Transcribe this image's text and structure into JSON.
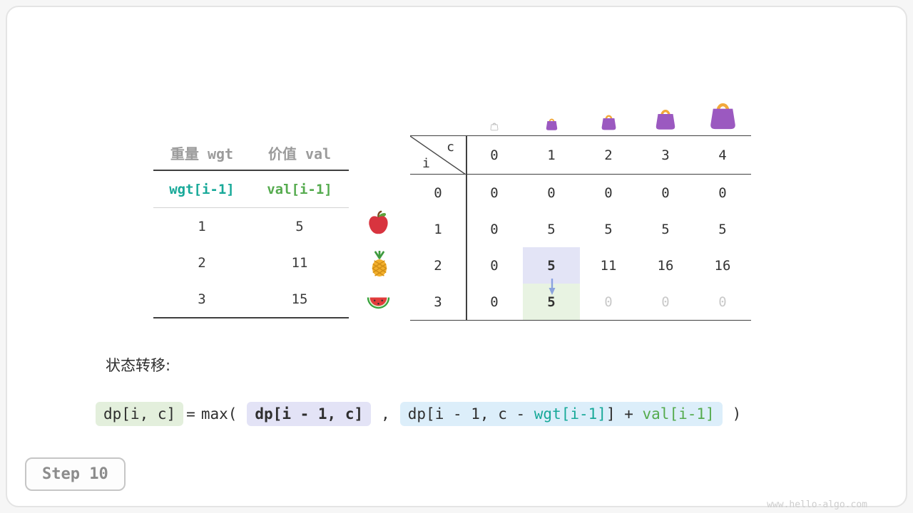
{
  "page": {
    "step_label": "Step 10",
    "watermark": "www.hello-algo.com",
    "formula_label": "状态转移:"
  },
  "items_table": {
    "headers": [
      "重量 wgt",
      "价值 val"
    ],
    "var_row": [
      "wgt[i-1]",
      "val[i-1]"
    ],
    "rows": [
      [
        "1",
        "5"
      ],
      [
        "2",
        "11"
      ],
      [
        "3",
        "15"
      ]
    ],
    "row_icons": [
      "apple-icon",
      "pineapple-icon",
      "watermelon-icon"
    ]
  },
  "dp_table": {
    "corner": {
      "row_label": "i",
      "col_label": "c"
    },
    "col_headers": [
      "0",
      "1",
      "2",
      "3",
      "4"
    ],
    "row_headers": [
      "0",
      "1",
      "2",
      "3"
    ],
    "rows": [
      [
        "0",
        "0",
        "0",
        "0",
        "0"
      ],
      [
        "0",
        "5",
        "5",
        "5",
        "5"
      ],
      [
        "0",
        "5",
        "11",
        "16",
        "16"
      ],
      [
        "0",
        "5",
        "0",
        "0",
        "0"
      ]
    ],
    "highlight_purple_cell": [
      2,
      1
    ],
    "highlight_green_cell": [
      3,
      1
    ],
    "bold_cells": [
      [
        2,
        1
      ],
      [
        3,
        1
      ]
    ],
    "dim_cells": [
      [
        3,
        2
      ],
      [
        3,
        3
      ],
      [
        3,
        4
      ]
    ],
    "bags": [
      {
        "icon": "bag-outline-icon",
        "size": 14
      },
      {
        "icon": "bag-icon",
        "size": 21
      },
      {
        "icon": "bag-icon",
        "size": 27
      },
      {
        "icon": "bag-icon",
        "size": 36
      },
      {
        "icon": "bag-icon",
        "size": 47
      }
    ],
    "arrow_icon": "transition-arrow-icon"
  },
  "formula": {
    "lhs": "dp[i, c]",
    "equals": "=",
    "max_open": "max(",
    "arg1": "dp[i - 1, c]",
    "comma": ",",
    "arg2_prefix": "dp[i - 1, c - ",
    "arg2_wgt": "wgt[i-1]",
    "arg2_mid": "] + ",
    "arg2_val": "val[i-1]",
    "close_paren": ")"
  },
  "colors": {
    "wgt": "#18a999",
    "val": "#55ab4e",
    "chip_green_bg": "#e3efdc",
    "chip_purple_bg": "#e3e3f6",
    "chip_blue_bg": "#dceefa",
    "cell_purple_bg": "#e3e4f6",
    "cell_green_bg": "#e8f3e2",
    "bag_body": "#9b59c0",
    "bag_handle": "#f2a93b",
    "arrow": "#7b96dd",
    "dim_text": "#c9c9c9"
  }
}
